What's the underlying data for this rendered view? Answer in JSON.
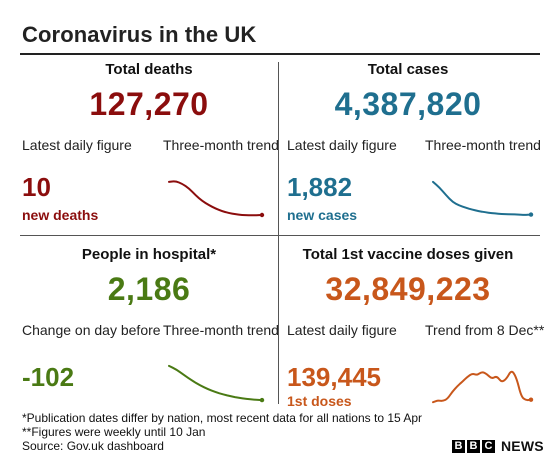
{
  "title": "Coronavirus in the UK",
  "colors": {
    "deaths": "#8b0d0d",
    "cases": "#1f6f8f",
    "hospital": "#4a7a14",
    "vaccine": "#c8571b"
  },
  "panels": {
    "deaths": {
      "heading": "Total deaths",
      "total": "127,270",
      "left_label": "Latest daily figure",
      "right_label": "Three-month trend",
      "figure": "10",
      "unit": "new deaths",
      "trend": [
        0.95,
        0.97,
        0.9,
        0.78,
        0.6,
        0.45,
        0.34,
        0.25,
        0.18,
        0.13,
        0.1,
        0.08,
        0.07,
        0.07,
        0.08
      ]
    },
    "cases": {
      "heading": "Total cases",
      "total": "4,387,820",
      "left_label": "Latest daily figure",
      "right_label": "Three-month trend",
      "figure": "1,882",
      "unit": "new cases",
      "trend": [
        0.95,
        0.8,
        0.6,
        0.42,
        0.33,
        0.27,
        0.22,
        0.18,
        0.15,
        0.13,
        0.11,
        0.1,
        0.1,
        0.09,
        0.08,
        0.09
      ]
    },
    "hospital": {
      "heading": "People in hospital*",
      "total": "2,186",
      "left_label": "Change on day before",
      "right_label": "Three-month trend",
      "figure": "-102",
      "trend": [
        0.95,
        0.85,
        0.7,
        0.56,
        0.44,
        0.34,
        0.26,
        0.2,
        0.15,
        0.11,
        0.08,
        0.06,
        0.05
      ]
    },
    "vaccine": {
      "heading": "Total 1st vaccine doses given",
      "total": "32,849,223",
      "left_label": "Latest daily figure",
      "right_label": "Trend from 8 Dec**",
      "figure": "139,445",
      "unit": "1st doses",
      "trend": [
        0.05,
        0.1,
        0.08,
        0.15,
        0.35,
        0.5,
        0.62,
        0.75,
        0.85,
        0.8,
        0.9,
        0.83,
        0.7,
        0.78,
        0.6,
        0.7,
        0.95,
        0.75,
        0.2,
        0.1,
        0.12
      ]
    }
  },
  "footnotes": [
    "*Publication dates differ by nation, most recent data for all nations to 15 Apr",
    "**Figures were weekly until 10 Jan",
    "Source: Gov.uk dashboard"
  ],
  "brand": {
    "letters": [
      "B",
      "B",
      "C"
    ],
    "word": "NEWS"
  }
}
